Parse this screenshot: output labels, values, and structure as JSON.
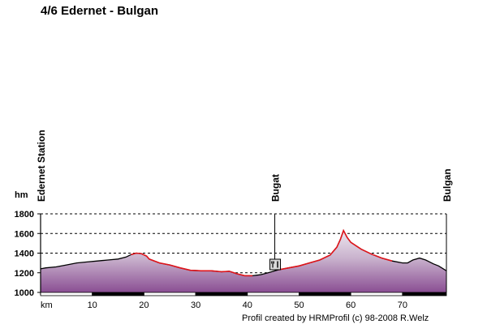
{
  "title": "4/6 Edernet - Bulgan",
  "credit": "Profil created by HRMProfil (c) 98-2008 R.Welz",
  "chart_data": {
    "type": "area",
    "title": "4/6 Edernet - Bulgan",
    "ylabel": "hm",
    "xlabel": "km",
    "xlim": [
      0,
      78.5
    ],
    "ylim": [
      1000,
      1800
    ],
    "yticks": [
      1000,
      1200,
      1400,
      1600,
      1800
    ],
    "xticks": [
      10,
      20,
      30,
      40,
      50,
      60,
      70
    ],
    "grid": "horizontal-dashed",
    "waypoints": [
      {
        "name": "Edernet Station",
        "km": 0
      },
      {
        "name": "Bugat",
        "km": 45.3,
        "icon": "restaurant-icon"
      },
      {
        "name": "Bulgan",
        "km": 78.5
      }
    ],
    "series": [
      {
        "values": [
          [
            0,
            1240
          ],
          [
            1,
            1250
          ],
          [
            3,
            1260
          ],
          [
            5,
            1280
          ],
          [
            7,
            1300
          ],
          [
            9,
            1310
          ],
          [
            11,
            1320
          ],
          [
            13,
            1330
          ],
          [
            15,
            1340
          ],
          [
            16.5,
            1360
          ],
          [
            17.5,
            1385
          ],
          [
            18.5,
            1400
          ],
          [
            19.5,
            1395
          ],
          [
            20.5,
            1370
          ],
          [
            21,
            1340
          ],
          [
            23,
            1300
          ],
          [
            25,
            1280
          ],
          [
            27,
            1250
          ],
          [
            29,
            1225
          ],
          [
            31,
            1220
          ],
          [
            33,
            1220
          ],
          [
            35,
            1210
          ],
          [
            36.5,
            1215
          ],
          [
            38,
            1190
          ],
          [
            39.5,
            1170
          ],
          [
            41,
            1170
          ],
          [
            42.5,
            1180
          ],
          [
            44,
            1200
          ],
          [
            46,
            1230
          ],
          [
            48,
            1250
          ],
          [
            50,
            1270
          ],
          [
            52,
            1300
          ],
          [
            54,
            1330
          ],
          [
            56,
            1380
          ],
          [
            57.3,
            1460
          ],
          [
            58,
            1540
          ],
          [
            58.6,
            1630
          ],
          [
            59.3,
            1560
          ],
          [
            60,
            1510
          ],
          [
            62,
            1440
          ],
          [
            64,
            1390
          ],
          [
            66,
            1350
          ],
          [
            68,
            1320
          ],
          [
            70,
            1300
          ],
          [
            71,
            1300
          ],
          [
            72,
            1330
          ],
          [
            73.3,
            1350
          ],
          [
            74.5,
            1330
          ],
          [
            76,
            1290
          ],
          [
            77,
            1270
          ],
          [
            78.5,
            1220
          ]
        ]
      }
    ],
    "climb_segments": [
      [
        17.5,
        41
      ],
      [
        46,
        68
      ]
    ]
  }
}
